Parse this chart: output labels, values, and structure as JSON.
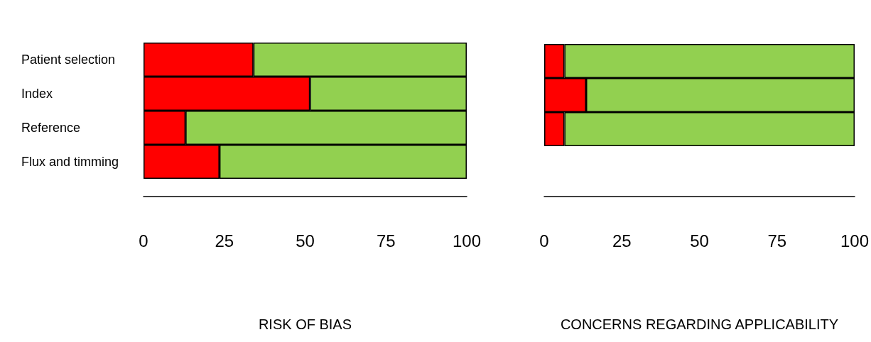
{
  "chart_data": [
    {
      "type": "bar",
      "orientation": "horizontal",
      "stacked": true,
      "xlabel": "RISK OF BIAS",
      "categories": [
        "Patient selection",
        "Index",
        "Reference",
        "Flux and timming"
      ],
      "xlim": [
        0,
        100
      ],
      "xticks": [
        0,
        25,
        50,
        75,
        100
      ],
      "grid": false,
      "series": [
        {
          "color": "#ff0000",
          "values": [
            34,
            51.5,
            13,
            23.5
          ]
        },
        {
          "color": "#92d050",
          "values": [
            66,
            48.5,
            87,
            76.5
          ]
        }
      ]
    },
    {
      "type": "bar",
      "orientation": "horizontal",
      "stacked": true,
      "xlabel": "CONCERNS REGARDING APPLICABILITY",
      "categories": [
        null,
        null,
        null
      ],
      "xlim": [
        0,
        100
      ],
      "xticks": [
        0,
        25,
        50,
        75,
        100
      ],
      "grid": false,
      "tick_labels": "x",
      "series": [
        {
          "color": "#ff0000",
          "values": [
            6.5,
            13.5,
            6.5
          ]
        },
        {
          "color": "#92d050",
          "values": [
            93.5,
            86.5,
            93.5
          ]
        }
      ]
    }
  ]
}
